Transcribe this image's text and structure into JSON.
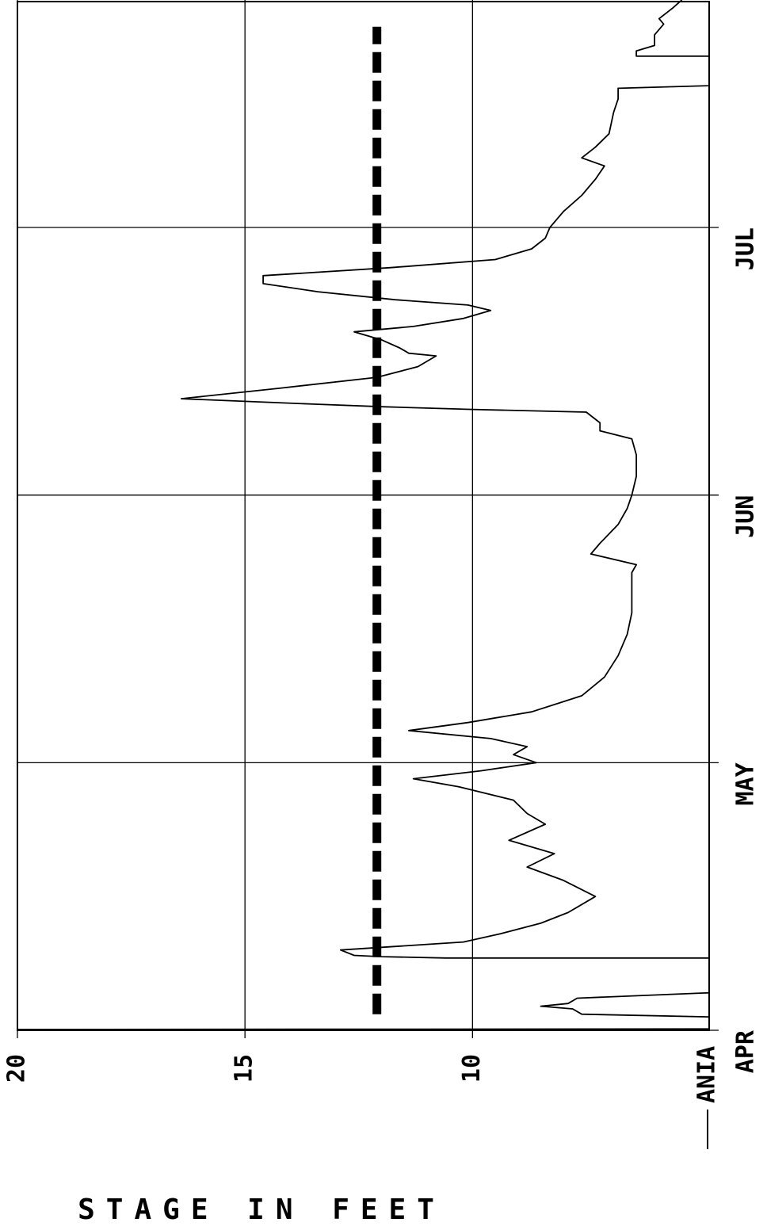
{
  "chart_data": {
    "type": "line",
    "title": "",
    "ylabel": "STAGE IN FEET",
    "xlabel": "",
    "ylim": [
      4.8,
      20
    ],
    "yticks": [
      "20",
      "15",
      "10"
    ],
    "xticks": [
      "APR",
      "MAY",
      "JUN",
      "JUL"
    ],
    "xlim_months": [
      4,
      7.85
    ],
    "grid": true,
    "legend": {
      "placement": "bottom-left",
      "entries": [
        "ANIA"
      ]
    },
    "series": [
      {
        "name": "ANIA",
        "style": "solid",
        "points": [
          [
            4.0,
            20.0
          ],
          [
            4.003,
            20.0
          ],
          [
            4.005,
            4.8
          ],
          [
            4.02,
            4.8
          ],
          [
            4.05,
            4.8
          ],
          [
            4.06,
            7.6
          ],
          [
            4.08,
            7.8
          ],
          [
            4.09,
            8.5
          ],
          [
            4.1,
            7.9
          ],
          [
            4.12,
            7.7
          ],
          [
            4.14,
            4.8
          ],
          [
            4.22,
            4.8
          ],
          [
            4.27,
            4.8
          ],
          [
            4.27,
            10.6
          ],
          [
            4.275,
            12.0
          ],
          [
            4.28,
            12.6
          ],
          [
            4.3,
            12.9
          ],
          [
            4.33,
            10.2
          ],
          [
            4.36,
            9.4
          ],
          [
            4.4,
            8.5
          ],
          [
            4.44,
            7.9
          ],
          [
            4.5,
            7.3
          ],
          [
            4.56,
            8.0
          ],
          [
            4.61,
            8.8
          ],
          [
            4.66,
            8.2
          ],
          [
            4.71,
            9.2
          ],
          [
            4.77,
            8.4
          ],
          [
            4.81,
            8.8
          ],
          [
            4.86,
            9.1
          ],
          [
            4.91,
            10.3
          ],
          [
            4.94,
            11.3
          ],
          [
            4.97,
            9.8
          ],
          [
            5.0,
            8.6
          ],
          [
            5.03,
            9.1
          ],
          [
            5.06,
            8.8
          ],
          [
            5.09,
            9.6
          ],
          [
            5.12,
            11.4
          ],
          [
            5.15,
            10.1
          ],
          [
            5.19,
            8.7
          ],
          [
            5.25,
            7.6
          ],
          [
            5.32,
            7.1
          ],
          [
            5.4,
            6.8
          ],
          [
            5.48,
            6.6
          ],
          [
            5.56,
            6.5
          ],
          [
            5.64,
            6.5
          ],
          [
            5.71,
            6.5
          ],
          [
            5.74,
            6.4
          ],
          [
            5.78,
            7.4
          ],
          [
            5.82,
            7.2
          ],
          [
            5.89,
            6.8
          ],
          [
            5.95,
            6.6
          ],
          [
            6.0,
            6.5
          ],
          [
            6.07,
            6.4
          ],
          [
            6.15,
            6.4
          ],
          [
            6.21,
            6.5
          ],
          [
            6.24,
            7.2
          ],
          [
            6.27,
            7.2
          ],
          [
            6.31,
            7.5
          ],
          [
            6.32,
            10.0
          ],
          [
            6.33,
            12.0
          ],
          [
            6.34,
            13.5
          ],
          [
            6.36,
            16.4
          ],
          [
            6.4,
            14.2
          ],
          [
            6.44,
            12.1
          ],
          [
            6.48,
            11.2
          ],
          [
            6.52,
            10.8
          ],
          [
            6.53,
            11.4
          ],
          [
            6.55,
            11.6
          ],
          [
            6.58,
            12.0
          ],
          [
            6.59,
            12.2
          ],
          [
            6.61,
            12.6
          ],
          [
            6.63,
            11.3
          ],
          [
            6.66,
            10.2
          ],
          [
            6.69,
            9.6
          ],
          [
            6.71,
            10.1
          ],
          [
            6.73,
            11.7
          ],
          [
            6.76,
            13.4
          ],
          [
            6.79,
            14.6
          ],
          [
            6.82,
            14.6
          ],
          [
            6.85,
            11.8
          ],
          [
            6.88,
            9.5
          ],
          [
            6.92,
            8.7
          ],
          [
            6.96,
            8.4
          ],
          [
            7.0,
            8.3
          ],
          [
            7.06,
            8.0
          ],
          [
            7.12,
            7.6
          ],
          [
            7.18,
            7.3
          ],
          [
            7.23,
            7.1
          ],
          [
            7.26,
            7.6
          ],
          [
            7.3,
            7.3
          ],
          [
            7.35,
            7.0
          ],
          [
            7.43,
            6.9
          ],
          [
            7.48,
            6.8
          ],
          [
            7.52,
            6.8
          ],
          [
            7.53,
            4.8
          ],
          [
            7.58,
            4.8
          ],
          [
            7.64,
            4.8
          ],
          [
            7.64,
            6.4
          ],
          [
            7.66,
            6.4
          ],
          [
            7.68,
            6.0
          ],
          [
            7.72,
            6.0
          ],
          [
            7.76,
            5.8
          ],
          [
            7.78,
            5.9
          ],
          [
            7.82,
            5.6
          ],
          [
            7.85,
            5.4
          ]
        ]
      },
      {
        "name": "",
        "style": "dashed",
        "points": [
          [
            4.06,
            12.1
          ],
          [
            7.75,
            12.1
          ]
        ]
      }
    ]
  }
}
